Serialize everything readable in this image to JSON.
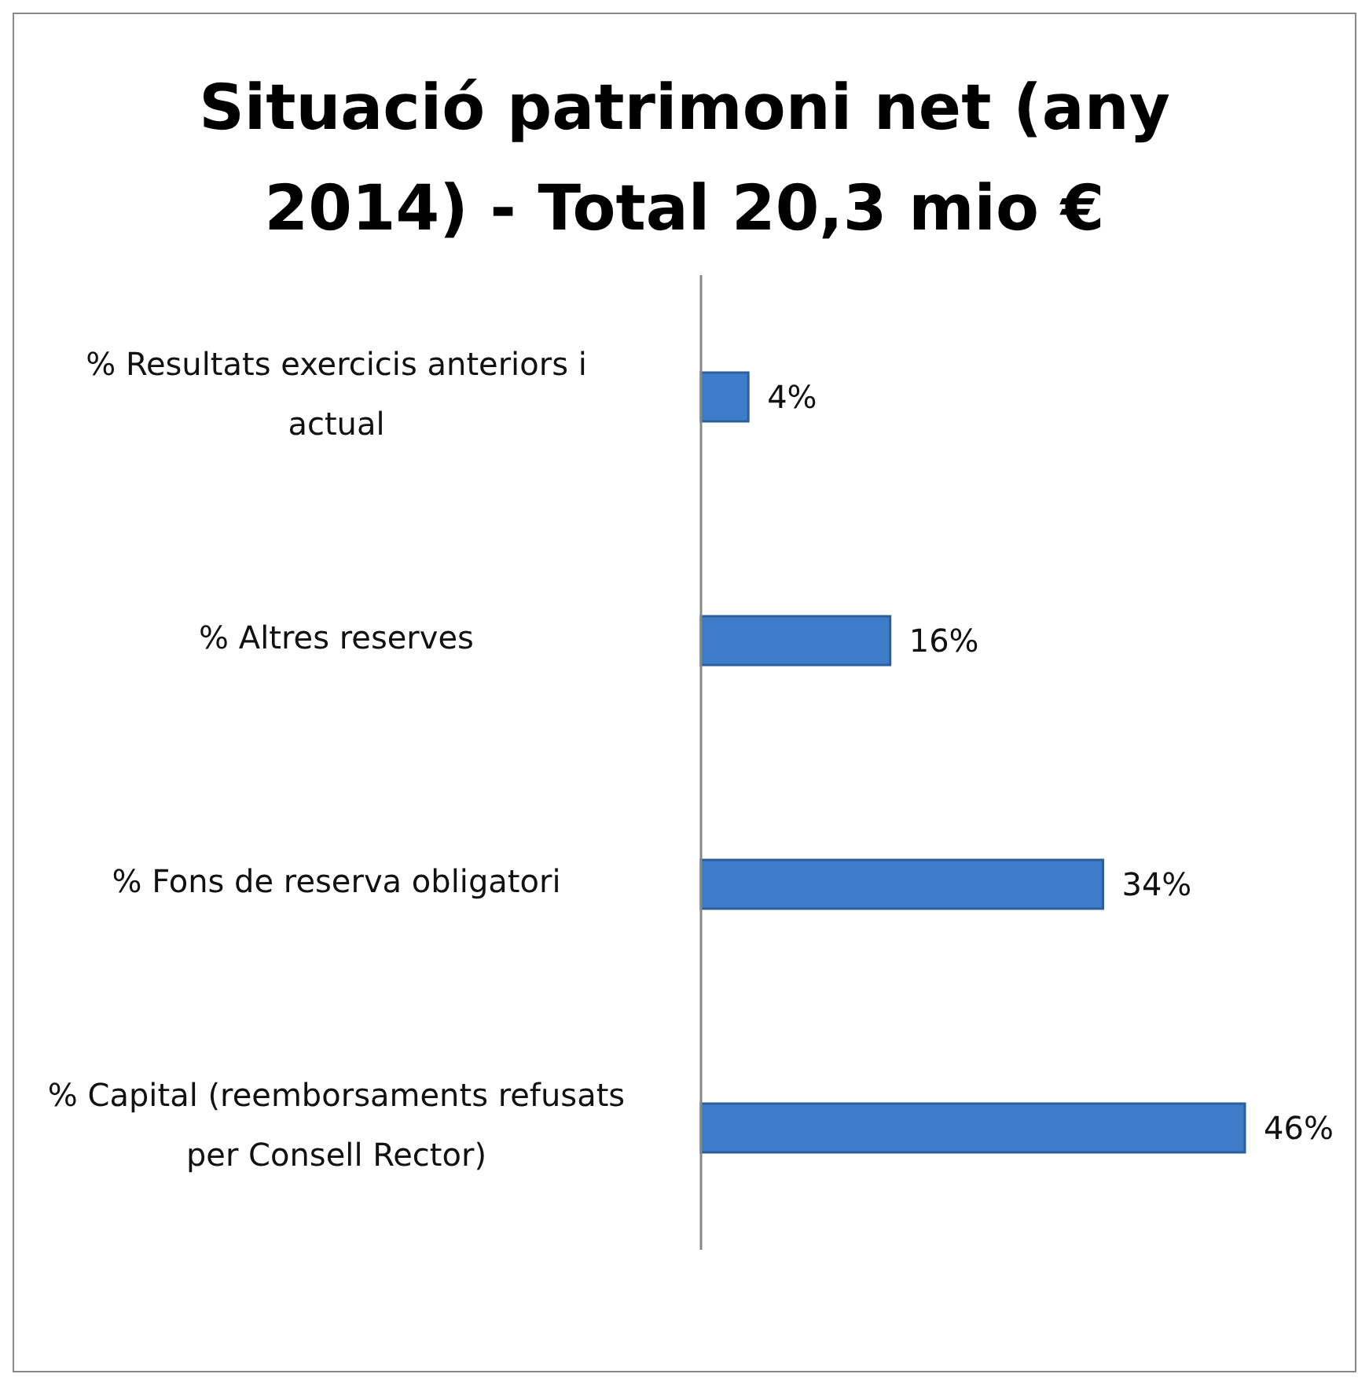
{
  "chart_data": {
    "type": "bar",
    "orientation": "horizontal",
    "title": "Situació patrimoni net (any 2014) - Total 20,3 mio €",
    "categories": [
      "% Resultats exercicis anteriors i actual",
      "% Altres reserves",
      "% Fons de reserva obligatori",
      "% Capital (reemborsaments refusats per Consell Rector)"
    ],
    "values": [
      4,
      16,
      34,
      46
    ],
    "value_labels": [
      "4%",
      "16%",
      "34%",
      "46%"
    ],
    "color": "#3d7cc9"
  }
}
